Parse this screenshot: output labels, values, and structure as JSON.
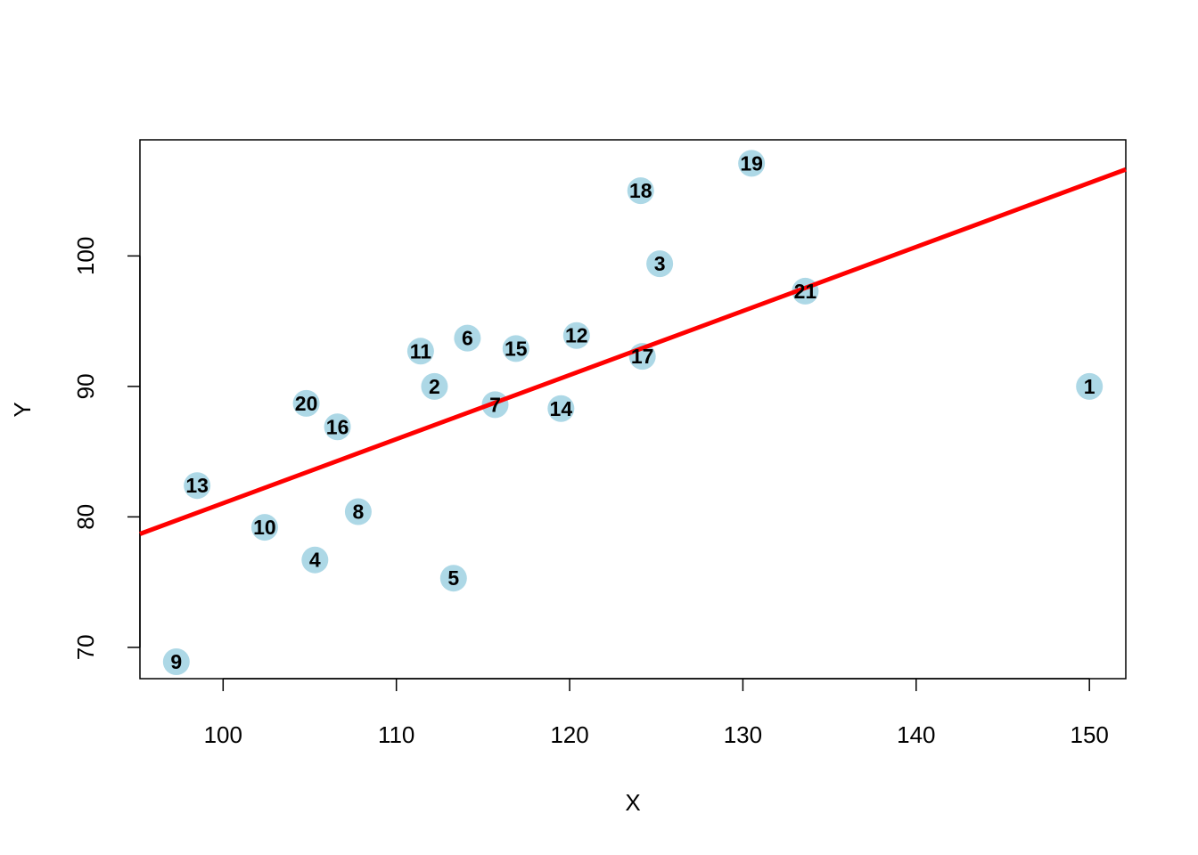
{
  "chart_data": {
    "type": "scatter",
    "title": "",
    "xlabel": "X",
    "ylabel": "Y",
    "xlim": [
      95.2,
      152.1
    ],
    "ylim": [
      67.6,
      108.9
    ],
    "x_ticks": [
      100,
      110,
      120,
      130,
      140,
      150
    ],
    "y_ticks": [
      70,
      80,
      90,
      100
    ],
    "grid": false,
    "legend": "none",
    "point_color": "#add8e6",
    "line_color": "#ff0000",
    "points": [
      {
        "label": "1",
        "x": 150.0,
        "y": 90.0
      },
      {
        "label": "2",
        "x": 112.2,
        "y": 90.0
      },
      {
        "label": "3",
        "x": 125.2,
        "y": 99.4
      },
      {
        "label": "4",
        "x": 105.3,
        "y": 76.7
      },
      {
        "label": "5",
        "x": 113.3,
        "y": 75.3
      },
      {
        "label": "6",
        "x": 114.1,
        "y": 93.7
      },
      {
        "label": "7",
        "x": 115.7,
        "y": 88.6
      },
      {
        "label": "8",
        "x": 107.8,
        "y": 80.4
      },
      {
        "label": "9",
        "x": 97.3,
        "y": 68.9
      },
      {
        "label": "10",
        "x": 102.4,
        "y": 79.2
      },
      {
        "label": "11",
        "x": 111.4,
        "y": 92.7
      },
      {
        "label": "12",
        "x": 120.4,
        "y": 93.9
      },
      {
        "label": "13",
        "x": 98.5,
        "y": 82.4
      },
      {
        "label": "14",
        "x": 119.5,
        "y": 88.3
      },
      {
        "label": "15",
        "x": 116.9,
        "y": 92.9
      },
      {
        "label": "16",
        "x": 106.6,
        "y": 86.9
      },
      {
        "label": "17",
        "x": 124.2,
        "y": 92.3
      },
      {
        "label": "18",
        "x": 124.1,
        "y": 105.0
      },
      {
        "label": "19",
        "x": 130.5,
        "y": 107.1
      },
      {
        "label": "20",
        "x": 104.8,
        "y": 88.7
      },
      {
        "label": "21",
        "x": 133.6,
        "y": 97.3
      }
    ],
    "fit_line": {
      "intercept": 31.95,
      "slope": 0.491
    }
  }
}
